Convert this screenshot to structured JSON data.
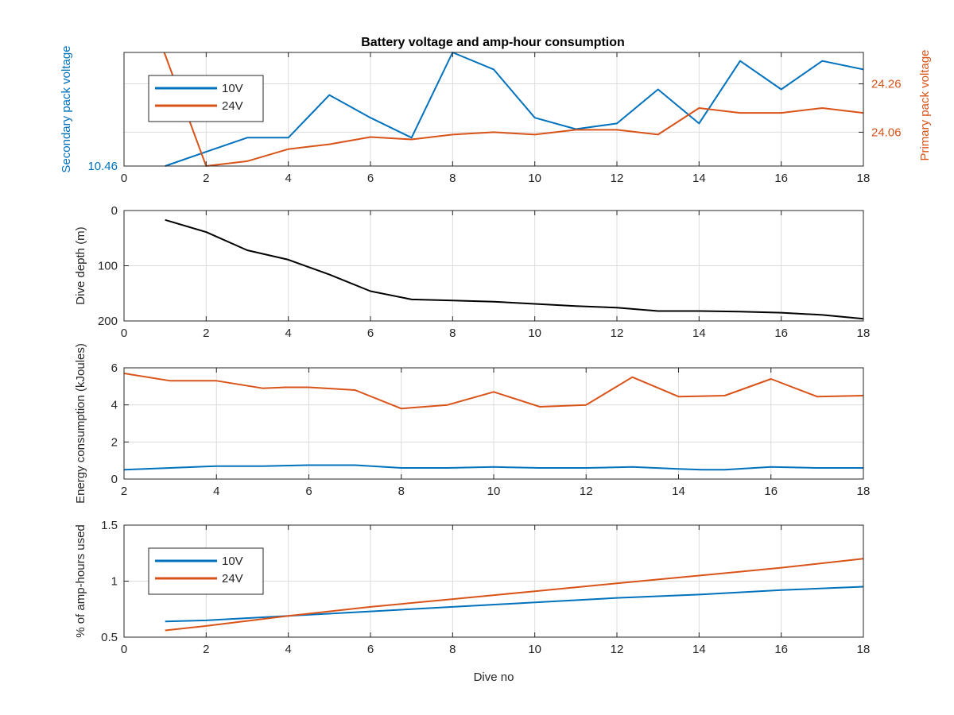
{
  "figure": {
    "title": "Battery voltage and amp-hour consumption",
    "xlabel_bottom": "Dive no"
  },
  "colors": {
    "blue": "#0072BD",
    "orange": "#D95319",
    "black": "#000000",
    "grid": "#dcdcdc"
  },
  "chart_data": [
    {
      "id": "voltage",
      "type": "line",
      "title": "Battery voltage and amp-hour consumption",
      "xlabel": "",
      "xlim": [
        0,
        18
      ],
      "xticks": [
        0,
        2,
        4,
        6,
        8,
        10,
        12,
        14,
        16,
        18
      ],
      "ylabel_left": "Secondary pack voltage",
      "ylim_left": [
        10.46,
        10.86
      ],
      "yticks_left": [
        10.46
      ],
      "ylabel_right": "Primary pack voltage",
      "ylim_right": [
        23.92,
        24.39
      ],
      "yticks_right": [
        24.06,
        24.26
      ],
      "grid": true,
      "legend": "top-left",
      "series": [
        {
          "name": "10V",
          "axis": "left",
          "color": "#0072BD",
          "x": [
            1,
            2,
            3,
            4,
            5,
            6,
            7,
            8,
            9,
            10,
            11,
            12,
            13,
            14,
            15,
            16,
            17,
            18
          ],
          "y": [
            10.46,
            10.51,
            10.56,
            10.56,
            10.71,
            10.63,
            10.56,
            10.86,
            10.8,
            10.63,
            10.59,
            10.61,
            10.73,
            10.61,
            10.83,
            10.73,
            10.83,
            10.8
          ]
        },
        {
          "name": "24V",
          "axis": "right",
          "color": "#D95319",
          "x": [
            0.98,
            2,
            3,
            4,
            5,
            6,
            7,
            8,
            9,
            10,
            11,
            12,
            13,
            14,
            15,
            16,
            17,
            18
          ],
          "y": [
            24.39,
            23.92,
            23.94,
            23.99,
            24.01,
            24.04,
            24.03,
            24.05,
            24.06,
            24.05,
            24.07,
            24.07,
            24.05,
            24.16,
            24.14,
            24.14,
            24.16,
            24.14
          ]
        }
      ]
    },
    {
      "id": "depth",
      "type": "line",
      "xlabel": "",
      "xlim": [
        0,
        18
      ],
      "xticks": [
        0,
        2,
        4,
        6,
        8,
        10,
        12,
        14,
        16,
        18
      ],
      "ylabel": "Dive depth (m)",
      "ylim": [
        0,
        200
      ],
      "y_reversed": true,
      "yticks": [
        0,
        100,
        200
      ],
      "grid": true,
      "series": [
        {
          "color": "#000000",
          "x": [
            1,
            2,
            3,
            4,
            5,
            6,
            7,
            8,
            9,
            10,
            11,
            12,
            13,
            14,
            15,
            16,
            17,
            18
          ],
          "y": [
            17,
            39,
            72,
            89,
            116,
            146,
            161,
            163,
            165,
            169,
            173,
            176,
            182,
            182,
            183,
            185,
            189,
            196
          ]
        }
      ]
    },
    {
      "id": "energy",
      "type": "line",
      "xlabel": "",
      "xlim": [
        2,
        18
      ],
      "xticks": [
        2,
        4,
        6,
        8,
        10,
        12,
        14,
        16,
        18
      ],
      "ylabel": "Energy consumption (kJoules)",
      "ylim": [
        0,
        6
      ],
      "yticks": [
        0,
        2,
        4,
        6
      ],
      "grid": true,
      "series": [
        {
          "color": "#D95319",
          "x": [
            2,
            3,
            4,
            5,
            5.5,
            6,
            7,
            8,
            9,
            10,
            11,
            12,
            13,
            14,
            15,
            16,
            17,
            18
          ],
          "y": [
            5.7,
            5.3,
            5.3,
            4.9,
            4.95,
            4.95,
            4.8,
            3.8,
            4.0,
            4.7,
            3.9,
            4.0,
            5.5,
            4.45,
            4.5,
            5.4,
            4.45,
            4.5
          ]
        },
        {
          "color": "#0072BD",
          "x": [
            2,
            3,
            4,
            5,
            6,
            7,
            8,
            9,
            10,
            11,
            12,
            13,
            14,
            14.5,
            15,
            16,
            17,
            18
          ],
          "y": [
            0.5,
            0.6,
            0.7,
            0.7,
            0.75,
            0.75,
            0.6,
            0.6,
            0.65,
            0.6,
            0.6,
            0.65,
            0.55,
            0.5,
            0.5,
            0.65,
            0.6,
            0.6
          ]
        }
      ]
    },
    {
      "id": "amphours",
      "type": "line",
      "xlabel": "Dive no",
      "xlim": [
        0,
        18
      ],
      "xticks": [
        0,
        2,
        4,
        6,
        8,
        10,
        12,
        14,
        16,
        18
      ],
      "ylabel": "% of amp-hours used",
      "ylim": [
        0.5,
        1.5
      ],
      "yticks": [
        0.5,
        1,
        1.5
      ],
      "grid": true,
      "legend": "top-left",
      "series": [
        {
          "name": "10V",
          "color": "#0072BD",
          "x": [
            1,
            2,
            4,
            6,
            8,
            10,
            12,
            14,
            16,
            18
          ],
          "y": [
            0.64,
            0.65,
            0.69,
            0.73,
            0.77,
            0.81,
            0.85,
            0.88,
            0.92,
            0.95
          ]
        },
        {
          "name": "24V",
          "color": "#D95319",
          "x": [
            1,
            2,
            4,
            6,
            8,
            10,
            12,
            14,
            16,
            18
          ],
          "y": [
            0.56,
            0.6,
            0.69,
            0.77,
            0.84,
            0.91,
            0.98,
            1.05,
            1.12,
            1.2
          ]
        }
      ]
    }
  ]
}
